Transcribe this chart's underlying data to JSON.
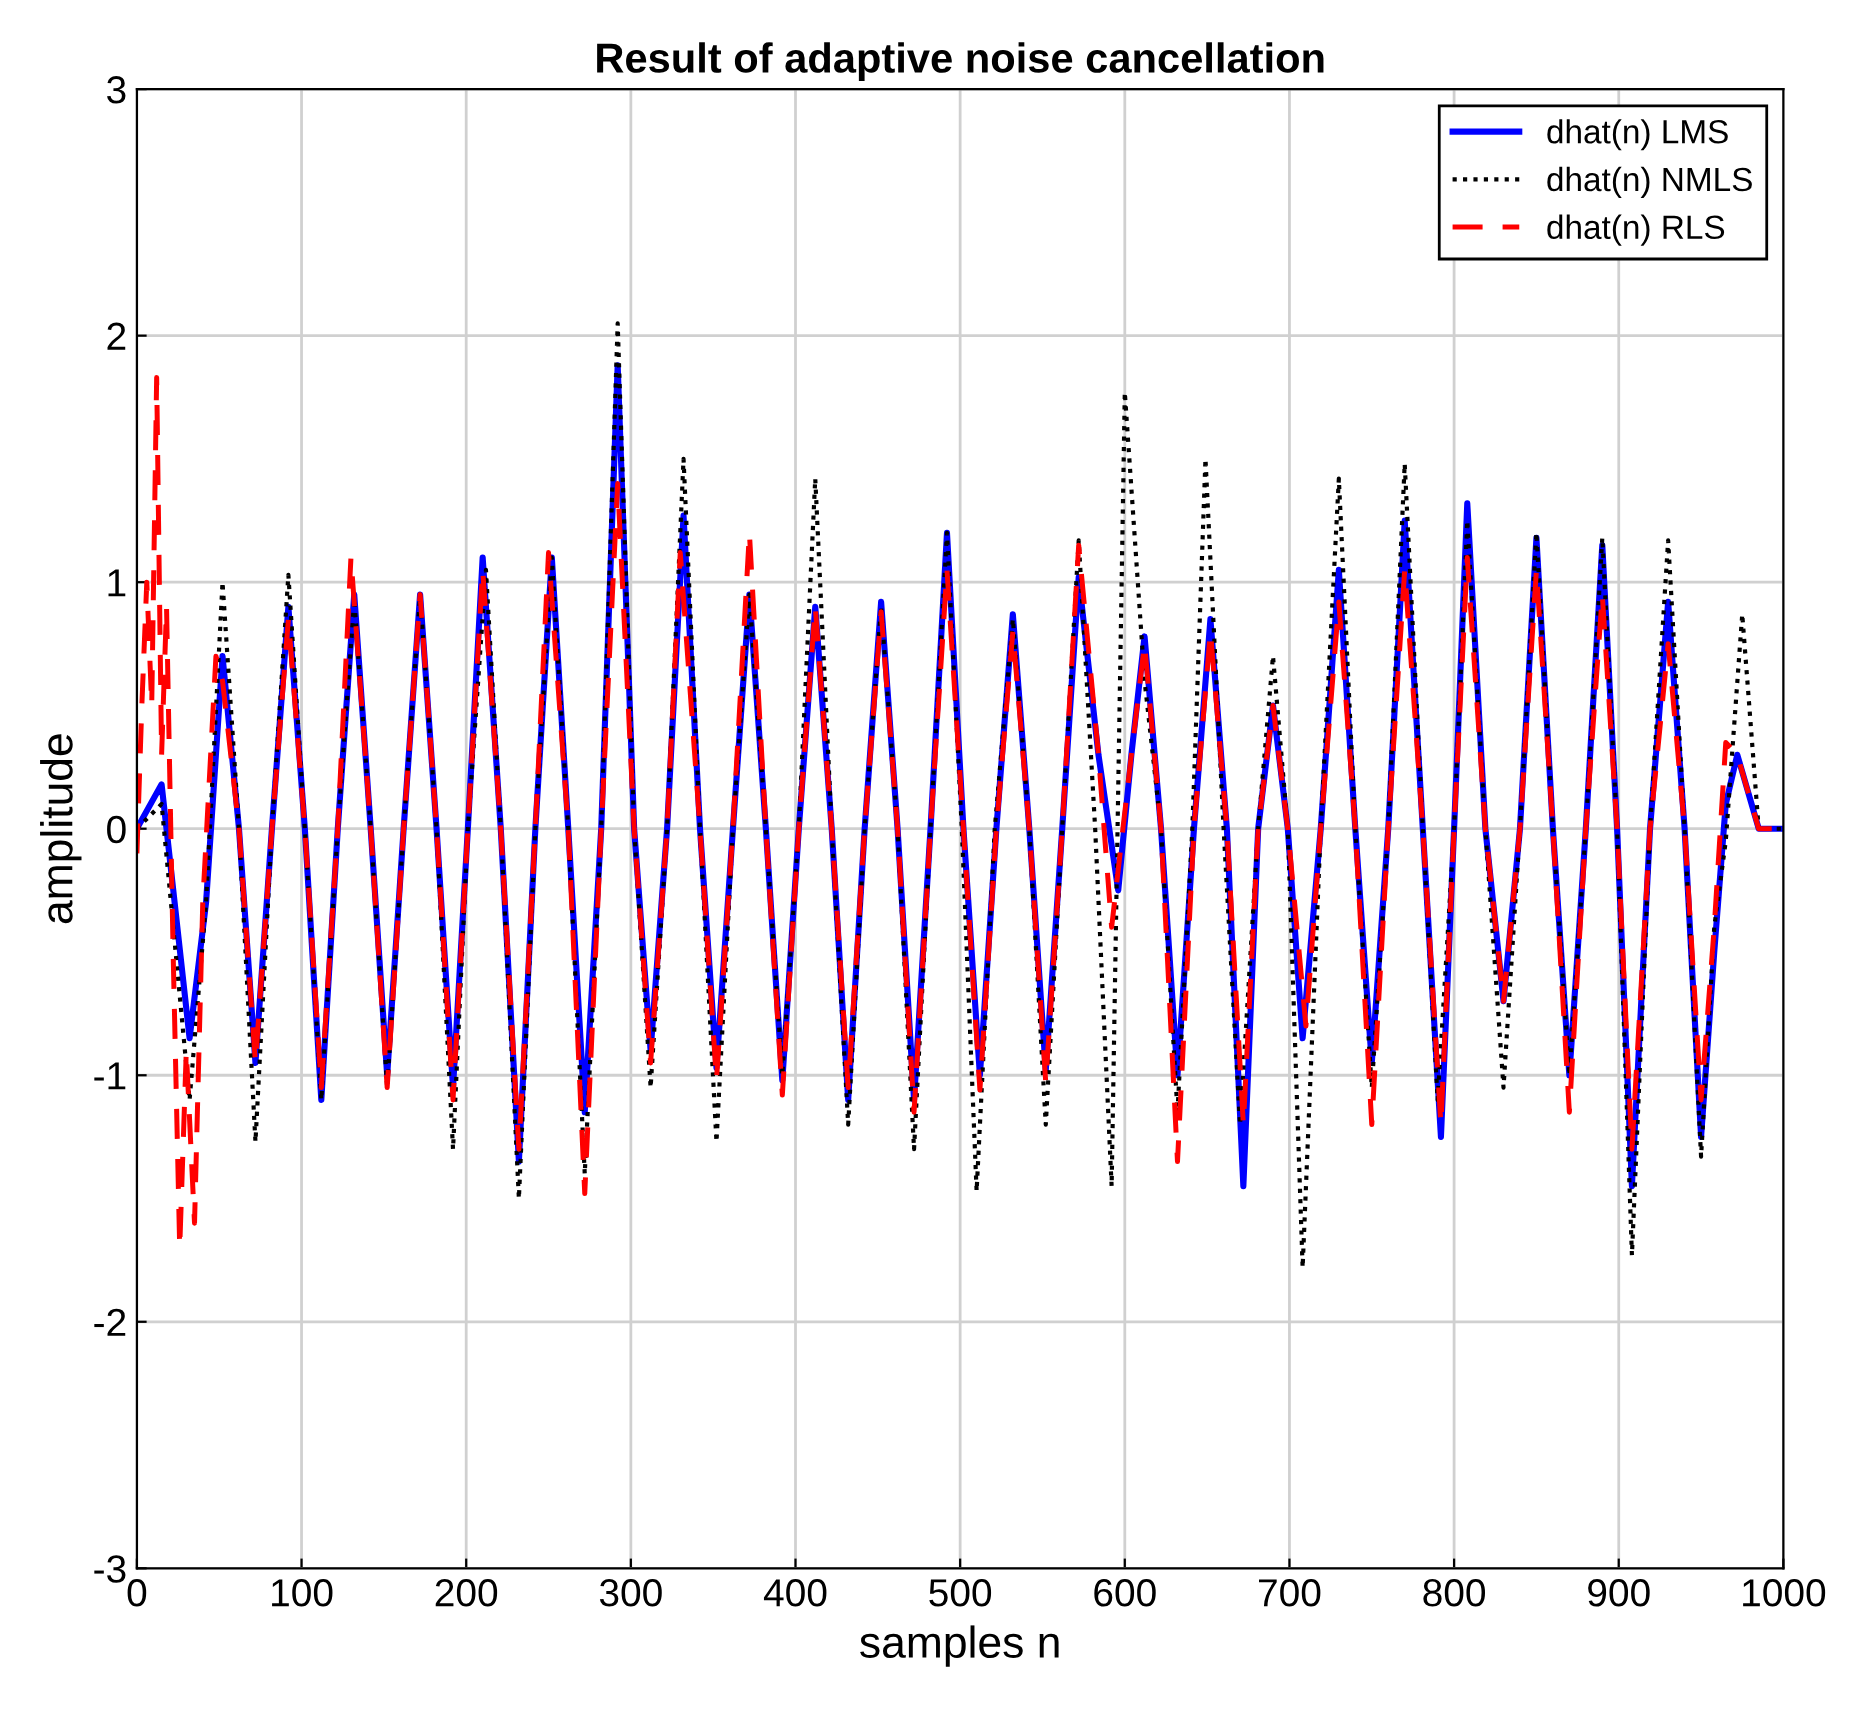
{
  "chart_data": {
    "type": "line",
    "title": "Result of adaptive noise cancellation",
    "xlabel": "samples n",
    "ylabel": "amplitude",
    "xlim": [
      0,
      1000
    ],
    "ylim": [
      -3,
      3
    ],
    "xticks": [
      0,
      100,
      200,
      300,
      400,
      500,
      600,
      700,
      800,
      900,
      1000
    ],
    "yticks": [
      -3,
      -2,
      -1,
      0,
      1,
      2,
      3
    ],
    "grid": true,
    "legend": "top right",
    "series": [
      {
        "name": "dhat(n) LMS",
        "color": "#0000ff",
        "line_style": "solid",
        "x": [
          0,
          15,
          32,
          42,
          52,
          62,
          72,
          82,
          92,
          102,
          112,
          122,
          132,
          142,
          152,
          162,
          172,
          182,
          192,
          201,
          210,
          221,
          232,
          242,
          252,
          262,
          272,
          282,
          292,
          302,
          312,
          322,
          332,
          342,
          352,
          362,
          372,
          382,
          392,
          402,
          412,
          422,
          432,
          442,
          452,
          462,
          472,
          482,
          492,
          502,
          512,
          522,
          532,
          542,
          552,
          562,
          572,
          584,
          596,
          604,
          612,
          622,
          632,
          642,
          652,
          662,
          672,
          681,
          690,
          699,
          708,
          719,
          730,
          740,
          750,
          760,
          770,
          781,
          792,
          800,
          808,
          819,
          830,
          840,
          850,
          860,
          870,
          880,
          890,
          899,
          908,
          919,
          930,
          940,
          950,
          958,
          965,
          972,
          985,
          1000
        ],
        "values": [
          0,
          0.18,
          -0.85,
          -0.3,
          0.7,
          0,
          -0.95,
          0,
          0.9,
          0,
          -1.1,
          0,
          0.95,
          0,
          -1.0,
          0,
          0.95,
          0,
          -1.05,
          0,
          1.1,
          0,
          -1.35,
          0,
          1.1,
          0,
          -1.15,
          0,
          1.88,
          0,
          -0.9,
          0,
          1.27,
          0,
          -0.97,
          0,
          0.95,
          0,
          -1.02,
          0,
          0.9,
          0,
          -1.1,
          0,
          0.92,
          0,
          -1.1,
          0,
          1.2,
          0,
          -1.0,
          0,
          0.87,
          0,
          -0.98,
          0,
          1.02,
          0.3,
          -0.25,
          0.3,
          0.78,
          0,
          -1.0,
          0,
          0.85,
          0,
          -1.45,
          0,
          0.5,
          0,
          -0.85,
          0,
          1.05,
          0,
          -0.95,
          0,
          1.25,
          0,
          -1.25,
          0,
          1.32,
          0,
          -0.7,
          0,
          1.18,
          0,
          -1.0,
          0,
          1.15,
          0,
          -1.45,
          0,
          0.92,
          0,
          -1.25,
          -0.5,
          0.1,
          0.3,
          0,
          0
        ]
      },
      {
        "name": "dhat(n) NMLS",
        "color": "#000000",
        "line_style": "dotted",
        "x": [
          0,
          15,
          32,
          42,
          52,
          62,
          72,
          82,
          92,
          102,
          112,
          122,
          132,
          142,
          152,
          162,
          172,
          182,
          192,
          201,
          212,
          221,
          232,
          242,
          252,
          262,
          272,
          282,
          292,
          302,
          312,
          322,
          332,
          342,
          352,
          362,
          372,
          382,
          392,
          402,
          412,
          422,
          432,
          442,
          452,
          462,
          472,
          482,
          492,
          501,
          510,
          521,
          532,
          542,
          552,
          562,
          572,
          582,
          592,
          600,
          612,
          622,
          632,
          641,
          649,
          660,
          670,
          681,
          690,
          699,
          708,
          719,
          730,
          740,
          750,
          760,
          770,
          781,
          790,
          800,
          808,
          819,
          830,
          840,
          850,
          860,
          870,
          880,
          890,
          899,
          908,
          919,
          930,
          940,
          950,
          958,
          965,
          975,
          985,
          1000
        ],
        "values": [
          0,
          0.1,
          -1.1,
          -0.3,
          1.0,
          0,
          -1.27,
          0,
          1.03,
          0,
          -1.1,
          0,
          0.93,
          0,
          -1.05,
          0,
          0.95,
          0,
          -1.3,
          0,
          1.05,
          0,
          -1.5,
          0,
          1.1,
          0,
          -1.4,
          0,
          2.05,
          0,
          -1.05,
          0,
          1.5,
          0,
          -1.27,
          0,
          0.95,
          0,
          -1.0,
          0,
          1.42,
          0,
          -1.2,
          0,
          0.9,
          0,
          -1.3,
          0,
          1.2,
          0,
          -1.47,
          0,
          0.85,
          0,
          -1.2,
          0,
          1.17,
          0,
          -1.45,
          1.77,
          0.6,
          0,
          -1.15,
          0,
          1.5,
          0,
          -1.2,
          0,
          0.7,
          0,
          -1.78,
          0,
          1.42,
          0,
          -1.05,
          0,
          1.48,
          0,
          -1.1,
          0,
          1.25,
          0,
          -1.05,
          0,
          1.2,
          0,
          -1.0,
          0,
          1.18,
          0,
          -1.73,
          0,
          1.17,
          0,
          -1.33,
          -0.4,
          -0.05,
          0.87,
          0,
          0
        ]
      },
      {
        "name": "dhat(n) RLS",
        "color": "#ff0000",
        "line_style": "dashed",
        "x": [
          0,
          3,
          6,
          9,
          12,
          15,
          18,
          22,
          26,
          30,
          35,
          40,
          48,
          52,
          62,
          72,
          82,
          92,
          102,
          112,
          122,
          130,
          142,
          152,
          162,
          172,
          182,
          192,
          201,
          210,
          221,
          232,
          242,
          250,
          262,
          272,
          282,
          292,
          302,
          312,
          322,
          330,
          342,
          352,
          362,
          372,
          382,
          392,
          402,
          412,
          422,
          432,
          442,
          452,
          462,
          472,
          482,
          492,
          502,
          512,
          522,
          532,
          542,
          552,
          562,
          572,
          584,
          592,
          604,
          612,
          622,
          632,
          642,
          652,
          662,
          672,
          681,
          690,
          699,
          710,
          719,
          730,
          740,
          750,
          760,
          770,
          781,
          792,
          800,
          808,
          819,
          830,
          840,
          850,
          860,
          870,
          880,
          890,
          899,
          908,
          919,
          930,
          940,
          950,
          958,
          965,
          972,
          985,
          1000
        ],
        "values": [
          -0.1,
          0.5,
          1.0,
          0.5,
          1.83,
          0.3,
          0.9,
          -0.5,
          -1.7,
          -0.9,
          -1.6,
          -0.3,
          0.7,
          0.6,
          0,
          -0.95,
          0,
          0.85,
          0,
          -1.05,
          0,
          1.1,
          0,
          -1.05,
          0,
          0.95,
          0,
          -1.1,
          0,
          1.05,
          0,
          -1.3,
          0,
          1.12,
          0,
          -1.48,
          0,
          1.4,
          0,
          -0.95,
          0,
          1.12,
          0,
          -1.02,
          0,
          1.2,
          0,
          -1.08,
          0,
          0.9,
          0,
          -1.05,
          0,
          0.88,
          0,
          -1.15,
          0,
          1.05,
          0,
          -1.06,
          0,
          0.8,
          0,
          -1.03,
          0,
          1.15,
          0.3,
          -0.4,
          0.3,
          0.75,
          0,
          -1.35,
          0,
          0.8,
          0,
          -1.2,
          0,
          0.5,
          0,
          -0.8,
          0,
          0.92,
          0,
          -1.2,
          0,
          1.05,
          0,
          -1.2,
          0,
          1.1,
          0,
          -0.7,
          0,
          1.05,
          0,
          -1.15,
          0,
          0.95,
          0,
          -1.3,
          0,
          0.75,
          0,
          -1.1,
          -0.4,
          0.35,
          0.3,
          0,
          0
        ]
      }
    ]
  }
}
